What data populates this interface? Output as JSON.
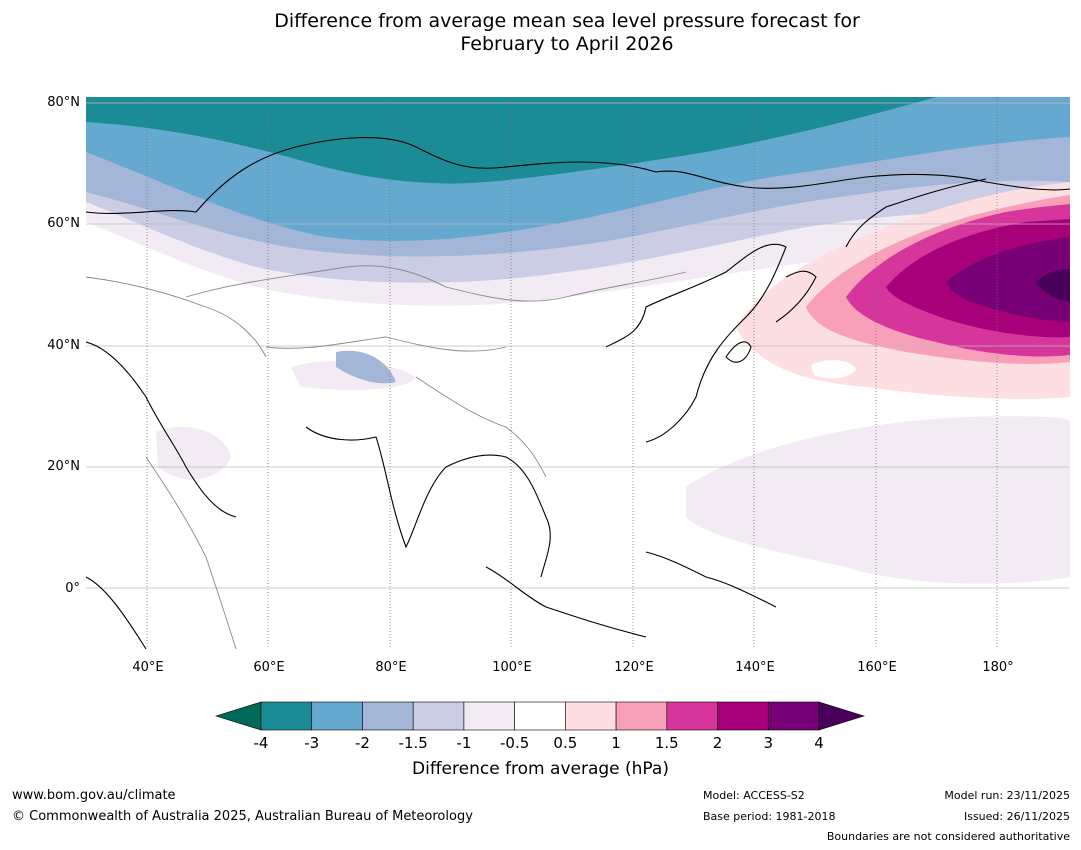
{
  "title_line1": "Difference from average mean sea level pressure forecast for",
  "title_line2": "February to April 2026",
  "map": {
    "lat_labels": [
      "80°N",
      "60°N",
      "40°N",
      "20°N",
      "0°"
    ],
    "lon_labels": [
      "40°E",
      "60°E",
      "80°E",
      "100°E",
      "120°E",
      "140°E",
      "160°E",
      "180°"
    ],
    "extent": {
      "lon_min": 30,
      "lon_max": 192,
      "lat_min": -10,
      "lat_max": 81
    }
  },
  "colorbar": {
    "ticks": [
      "-4",
      "-3",
      "-2",
      "-1.5",
      "-1",
      "-0.5",
      "0.5",
      "1",
      "1.5",
      "2",
      "3",
      "4"
    ],
    "colors": [
      "#1b8c96",
      "#65a9d0",
      "#a4b6d8",
      "#cbcde4",
      "#f2ebf3",
      "#ffffff",
      "#fedfe1",
      "#f8a0b9",
      "#d6359b",
      "#a7007a",
      "#780076"
    ],
    "under_color": "#006a5a",
    "over_color": "#4a005a",
    "label": "Difference from average (hPa)"
  },
  "footer": {
    "website": "www.bom.gov.au/climate",
    "copyright": "© Commonwealth of Australia 2025, Australian Bureau of Meteorology",
    "model": "Model: ACCESS-S2",
    "base_period": "Base period: 1981-2018",
    "model_run": "Model run: 23/11/2025",
    "issued": "Issued: 26/11/2025",
    "disclaimer": "Boundaries are not considered authoritative"
  }
}
